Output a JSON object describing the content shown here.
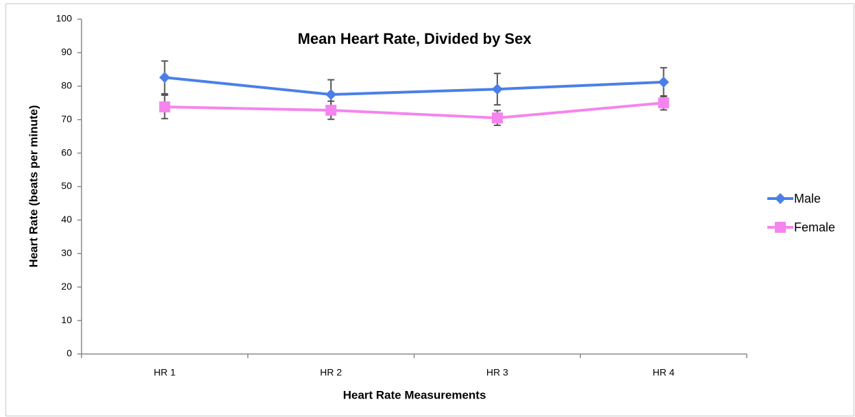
{
  "chart_data": {
    "type": "line",
    "title": "Mean Heart Rate, Divided by Sex",
    "x_label": "Heart Rate Measurements",
    "y_label": "Heart Rate (beats per minute)",
    "categories": [
      "HR 1",
      "HR 2",
      "HR 3",
      "HR 4"
    ],
    "series": [
      {
        "name": "Male",
        "color": "#4a7fe8",
        "marker": "diamond",
        "values": [
          82.6,
          77.5,
          79.1,
          81.2
        ],
        "errors": [
          4.9,
          4.4,
          4.7,
          4.3
        ]
      },
      {
        "name": "Female",
        "color": "#f584ee",
        "marker": "square",
        "values": [
          73.8,
          72.8,
          70.5,
          75.0
        ],
        "errors": [
          3.5,
          2.7,
          2.2,
          2.1
        ]
      }
    ],
    "ylim": [
      0,
      100
    ],
    "yticks": [
      0,
      10,
      20,
      30,
      40,
      50,
      60,
      70,
      80,
      90,
      100
    ],
    "grid": false,
    "legend": "right"
  }
}
